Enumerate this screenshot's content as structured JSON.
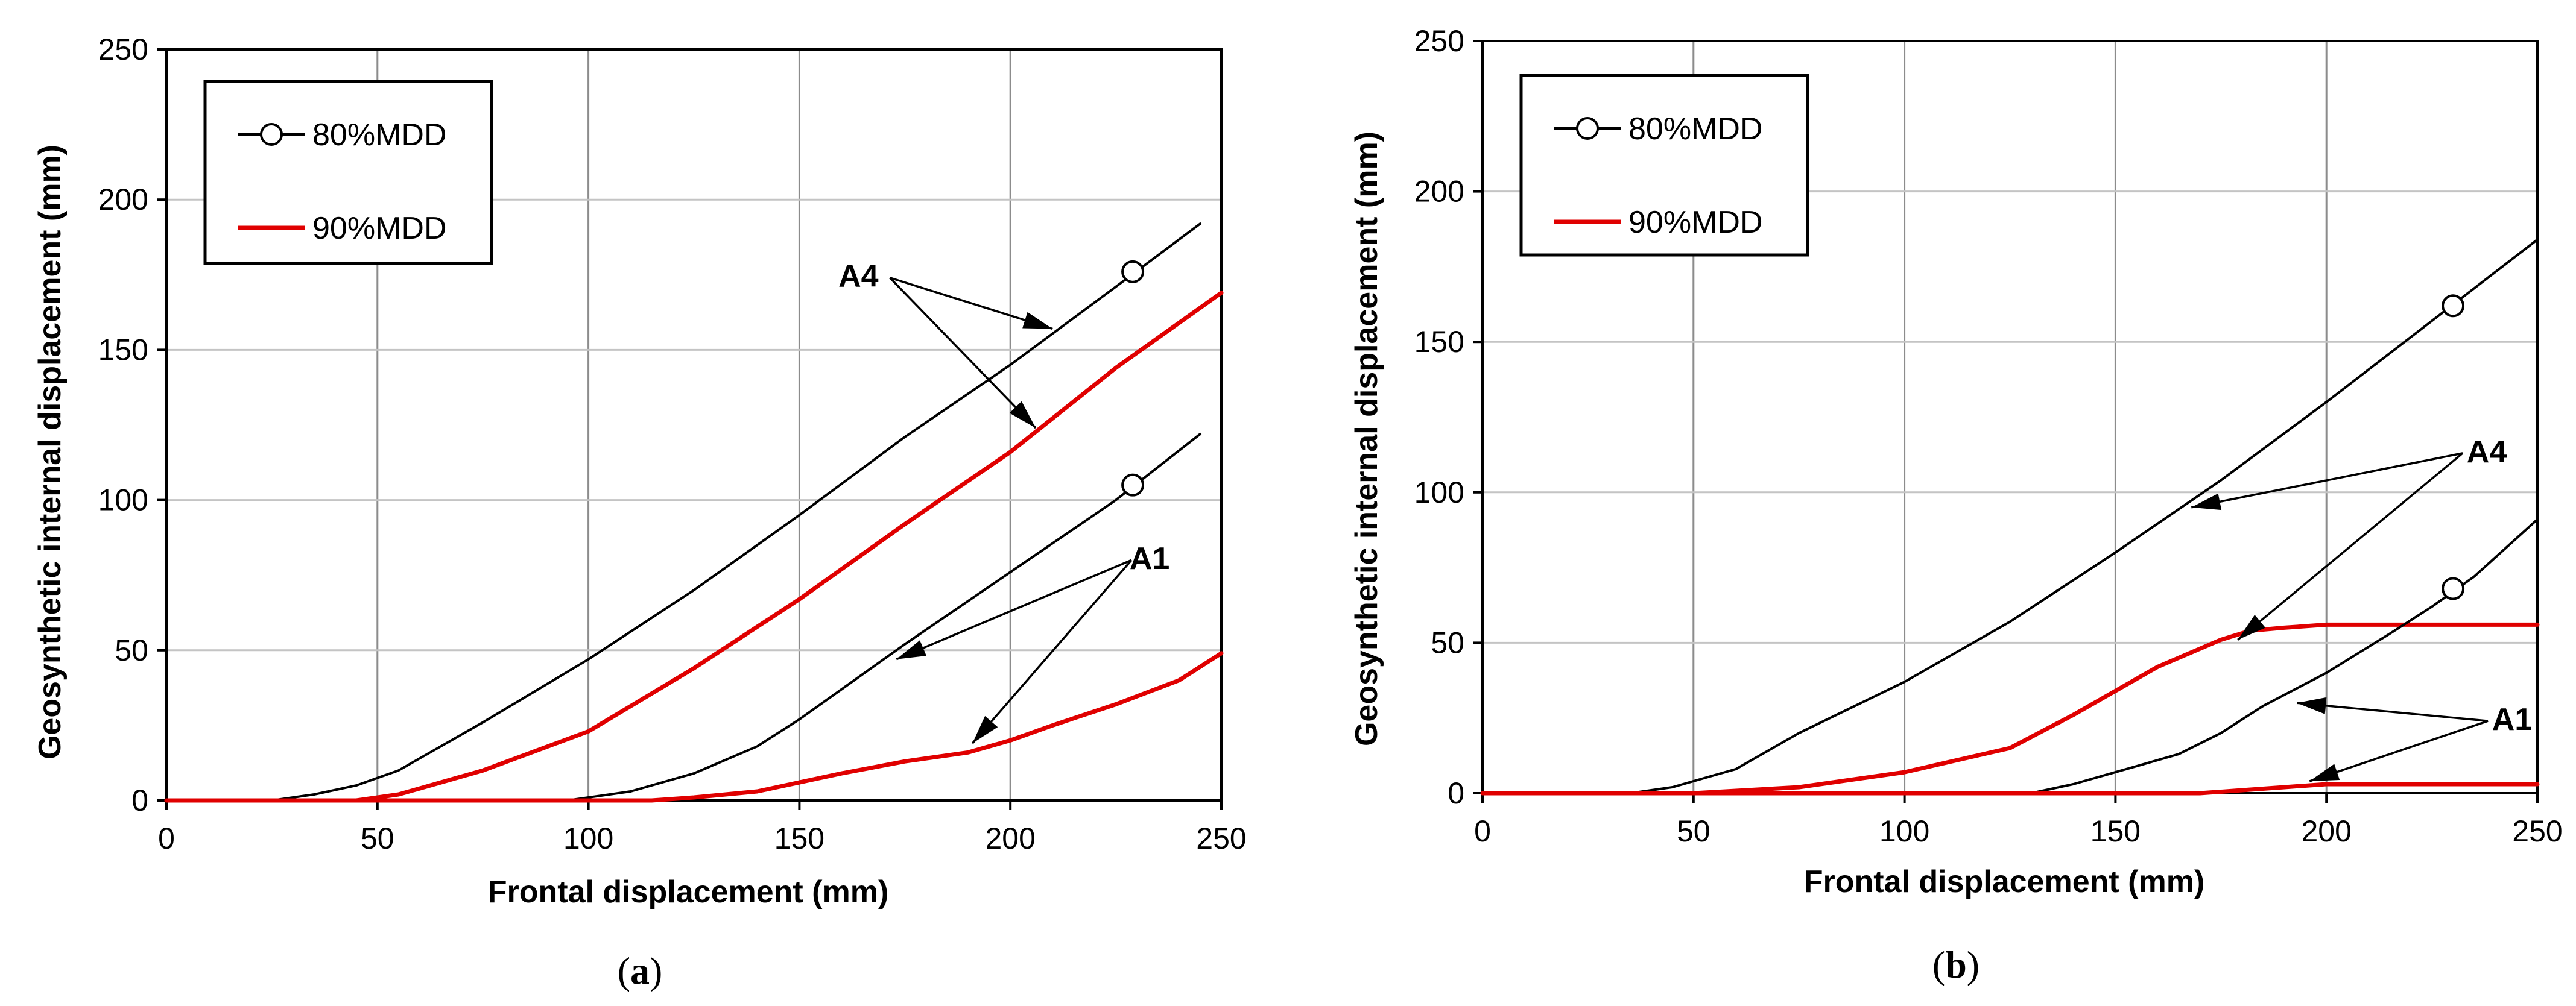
{
  "chart_data": [
    {
      "type": "line",
      "caption": "(a)",
      "caption_letter": "a",
      "xlabel": "Frontal displacement  (mm)",
      "ylabel": "Geosynthetic internal displacement  (mm)",
      "xlim": [
        0,
        250
      ],
      "ylim": [
        0,
        250
      ],
      "xticks": [
        0,
        50,
        100,
        150,
        200,
        250
      ],
      "yticks": [
        0,
        50,
        100,
        150,
        200,
        250
      ],
      "grid": "vertical and horizontal gridlines",
      "legend": {
        "position": "top-left",
        "entries": [
          {
            "label": "80%MDD",
            "color": "#000000",
            "marker": "circle"
          },
          {
            "label": "90%MDD",
            "color": "#e00000",
            "marker": "none"
          }
        ]
      },
      "series": [
        {
          "name": "A4 80%MDD",
          "color": "#000000",
          "x": [
            0,
            25,
            35,
            45,
            55,
            60,
            75,
            100,
            125,
            150,
            175,
            200,
            225,
            245
          ],
          "y": [
            0,
            0,
            2,
            5,
            10,
            14,
            26,
            47,
            70,
            95,
            121,
            145,
            171,
            192
          ],
          "marker_x": 229,
          "marker_y": 176
        },
        {
          "name": "A4 90%MDD",
          "color": "#e00000",
          "x": [
            0,
            45,
            55,
            60,
            75,
            100,
            125,
            150,
            175,
            200,
            225,
            250
          ],
          "y": [
            0,
            0,
            2,
            4,
            10,
            23,
            44,
            67,
            92,
            116,
            144,
            169
          ]
        },
        {
          "name": "A1 80%MDD",
          "color": "#000000",
          "x": [
            0,
            95,
            110,
            125,
            140,
            150,
            175,
            200,
            225,
            245
          ],
          "y": [
            0,
            0,
            3,
            9,
            18,
            27,
            52,
            76,
            100,
            122
          ],
          "marker_x": 229,
          "marker_y": 105
        },
        {
          "name": "A1 90%MDD",
          "color": "#e00000",
          "x": [
            0,
            115,
            125,
            140,
            150,
            160,
            175,
            190,
            200,
            210,
            225,
            240,
            250
          ],
          "y": [
            0,
            0,
            1,
            3,
            6,
            9,
            13,
            16,
            20,
            25,
            32,
            40,
            49
          ]
        }
      ],
      "annotations": [
        {
          "text": "A4",
          "x": 164,
          "y": 171,
          "arrow_to": [
            [
              210,
              157
            ],
            [
              206,
              124
            ]
          ]
        },
        {
          "text": "A1",
          "x": 233,
          "y": 77,
          "arrow_to": [
            [
              173,
              47
            ],
            [
              191,
              19
            ]
          ]
        }
      ]
    },
    {
      "type": "line",
      "caption": "(b)",
      "caption_letter": "b",
      "xlabel": "Frontal displacement  (mm)",
      "ylabel": "Geosynthetic internal displacement  (mm)",
      "xlim": [
        0,
        250
      ],
      "ylim": [
        0,
        250
      ],
      "xticks": [
        0,
        50,
        100,
        150,
        200,
        250
      ],
      "yticks": [
        0,
        50,
        100,
        150,
        200,
        250
      ],
      "grid": "vertical and horizontal gridlines",
      "legend": {
        "position": "top-left",
        "entries": [
          {
            "label": "80%MDD",
            "color": "#000000",
            "marker": "circle"
          },
          {
            "label": "90%MDD",
            "color": "#e00000",
            "marker": "none"
          }
        ]
      },
      "series": [
        {
          "name": "A4 80%MDD",
          "color": "#000000",
          "x": [
            0,
            35,
            45,
            55,
            60,
            75,
            100,
            125,
            150,
            175,
            200,
            225,
            250
          ],
          "y": [
            0,
            0,
            2,
            6,
            8,
            20,
            37,
            57,
            80,
            104,
            130,
            157,
            184
          ],
          "marker_x": 230,
          "marker_y": 162
        },
        {
          "name": "A4 90%MDD",
          "color": "#e00000",
          "x": [
            0,
            50,
            75,
            100,
            125,
            140,
            160,
            175,
            182,
            190,
            200,
            250
          ],
          "y": [
            0,
            0,
            2,
            7,
            15,
            26,
            42,
            51,
            54,
            55,
            56,
            56
          ]
        },
        {
          "name": "A1 80%MDD",
          "color": "#000000",
          "x": [
            0,
            130,
            140,
            150,
            165,
            175,
            185,
            200,
            215,
            225,
            235,
            250
          ],
          "y": [
            0,
            0,
            3,
            7,
            13,
            20,
            29,
            40,
            53,
            62,
            72,
            91
          ],
          "marker_x": 230,
          "marker_y": 68
        },
        {
          "name": "A1 90%MDD",
          "color": "#e00000",
          "x": [
            0,
            170,
            180,
            190,
            200,
            250
          ],
          "y": [
            0,
            0,
            1,
            2,
            3,
            3
          ]
        }
      ],
      "annotations": [
        {
          "text": "A4",
          "x": 238,
          "y": 110,
          "arrow_to": [
            [
              168,
              95
            ],
            [
              179,
              51
            ]
          ]
        },
        {
          "text": "A1",
          "x": 244,
          "y": 21,
          "arrow_to": [
            [
              193,
              30
            ],
            [
              196,
              4
            ]
          ]
        }
      ]
    }
  ]
}
